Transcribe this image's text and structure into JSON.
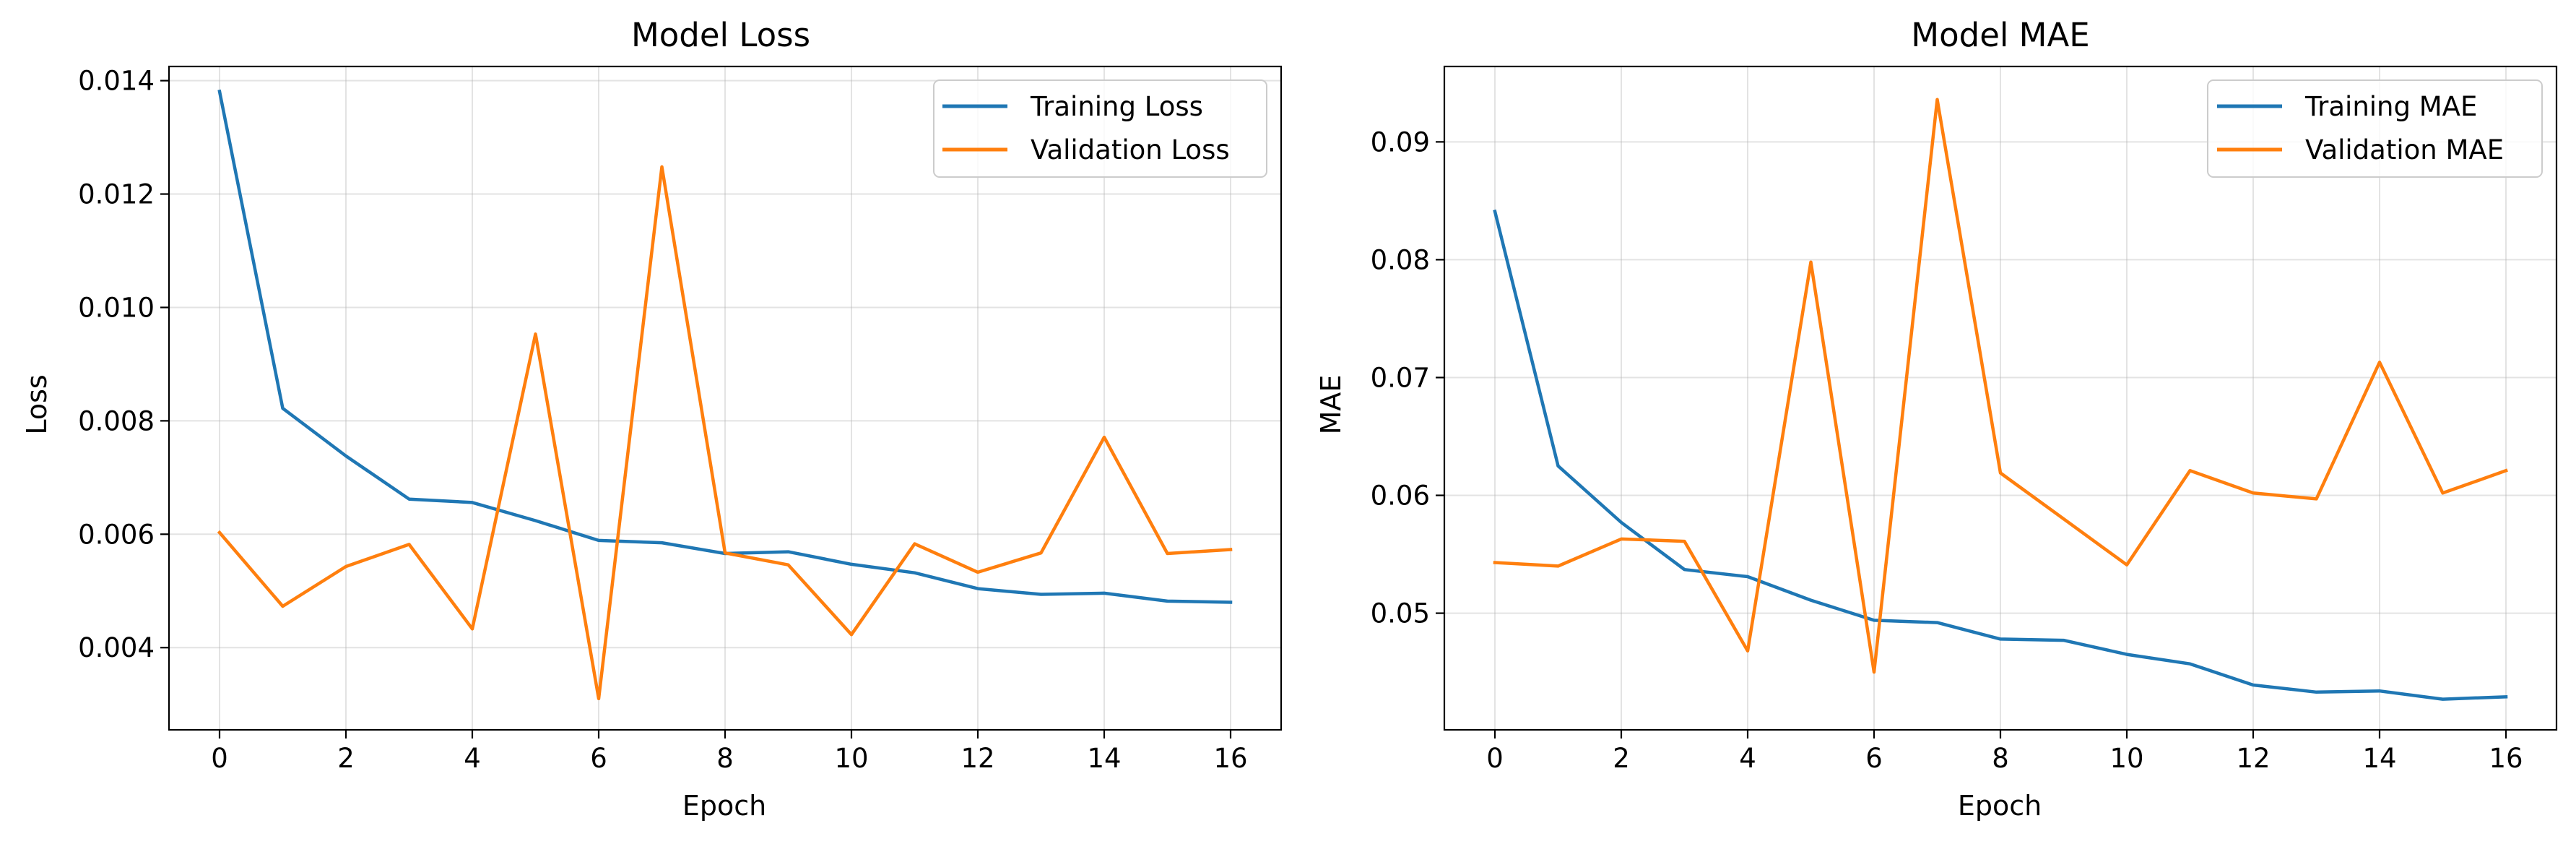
{
  "colors": {
    "training": "#1f77b4",
    "validation": "#ff7f0e",
    "grid": "#b0b0b0"
  },
  "chart_data": [
    {
      "type": "line",
      "title": "Model Loss",
      "xlabel": "Epoch",
      "ylabel": "Loss",
      "x": [
        0,
        1,
        2,
        3,
        4,
        5,
        6,
        7,
        8,
        9,
        10,
        11,
        12,
        13,
        14,
        15,
        16
      ],
      "xlim": [
        -0.8,
        16.8
      ],
      "ylim": [
        0.00255,
        0.01425
      ],
      "xticks": [
        0,
        2,
        4,
        6,
        8,
        10,
        12,
        14,
        16
      ],
      "xtick_labels": [
        "0",
        "2",
        "4",
        "6",
        "8",
        "10",
        "12",
        "14",
        "16"
      ],
      "yticks": [
        0.004,
        0.006,
        0.008,
        0.01,
        0.012,
        0.014
      ],
      "ytick_labels": [
        "0.004",
        "0.006",
        "0.008",
        "0.010",
        "0.012",
        "0.014"
      ],
      "grid": true,
      "legend_position": "top-right",
      "series": [
        {
          "name": "Training Loss",
          "color": "#1f77b4",
          "values": [
            0.01381,
            0.00822,
            0.00738,
            0.00662,
            0.00656,
            0.00624,
            0.00589,
            0.00585,
            0.00566,
            0.00569,
            0.00547,
            0.00532,
            0.00504,
            0.00494,
            0.00496,
            0.00482,
            0.0048
          ]
        },
        {
          "name": "Validation Loss",
          "color": "#ff7f0e",
          "values": [
            0.00603,
            0.00473,
            0.00543,
            0.00582,
            0.00433,
            0.00953,
            0.0031,
            0.01248,
            0.00567,
            0.00546,
            0.00423,
            0.00583,
            0.00533,
            0.00567,
            0.00771,
            0.00566,
            0.00573
          ]
        }
      ]
    },
    {
      "type": "line",
      "title": "Model MAE",
      "xlabel": "Epoch",
      "ylabel": "MAE",
      "x": [
        0,
        1,
        2,
        3,
        4,
        5,
        6,
        7,
        8,
        9,
        10,
        11,
        12,
        13,
        14,
        15,
        16
      ],
      "xlim": [
        -0.8,
        16.8
      ],
      "ylim": [
        0.0401,
        0.0964
      ],
      "xticks": [
        0,
        2,
        4,
        6,
        8,
        10,
        12,
        14,
        16
      ],
      "xtick_labels": [
        "0",
        "2",
        "4",
        "6",
        "8",
        "10",
        "12",
        "14",
        "16"
      ],
      "yticks": [
        0.05,
        0.06,
        0.07,
        0.08,
        0.09
      ],
      "ytick_labels": [
        "0.05",
        "0.06",
        "0.07",
        "0.08",
        "0.09"
      ],
      "grid": true,
      "legend_position": "top-right",
      "series": [
        {
          "name": "Training MAE",
          "color": "#1f77b4",
          "values": [
            0.0841,
            0.0625,
            0.0577,
            0.0537,
            0.0531,
            0.0511,
            0.0494,
            0.0492,
            0.0478,
            0.0477,
            0.0465,
            0.0457,
            0.0439,
            0.0433,
            0.0434,
            0.0427,
            0.0429
          ]
        },
        {
          "name": "Validation MAE",
          "color": "#ff7f0e",
          "values": [
            0.0543,
            0.054,
            0.0563,
            0.0561,
            0.0468,
            0.0798,
            0.045,
            0.0936,
            0.0619,
            0.058,
            0.0541,
            0.0621,
            0.0602,
            0.0597,
            0.0713,
            0.0602,
            0.0621
          ]
        }
      ]
    }
  ]
}
